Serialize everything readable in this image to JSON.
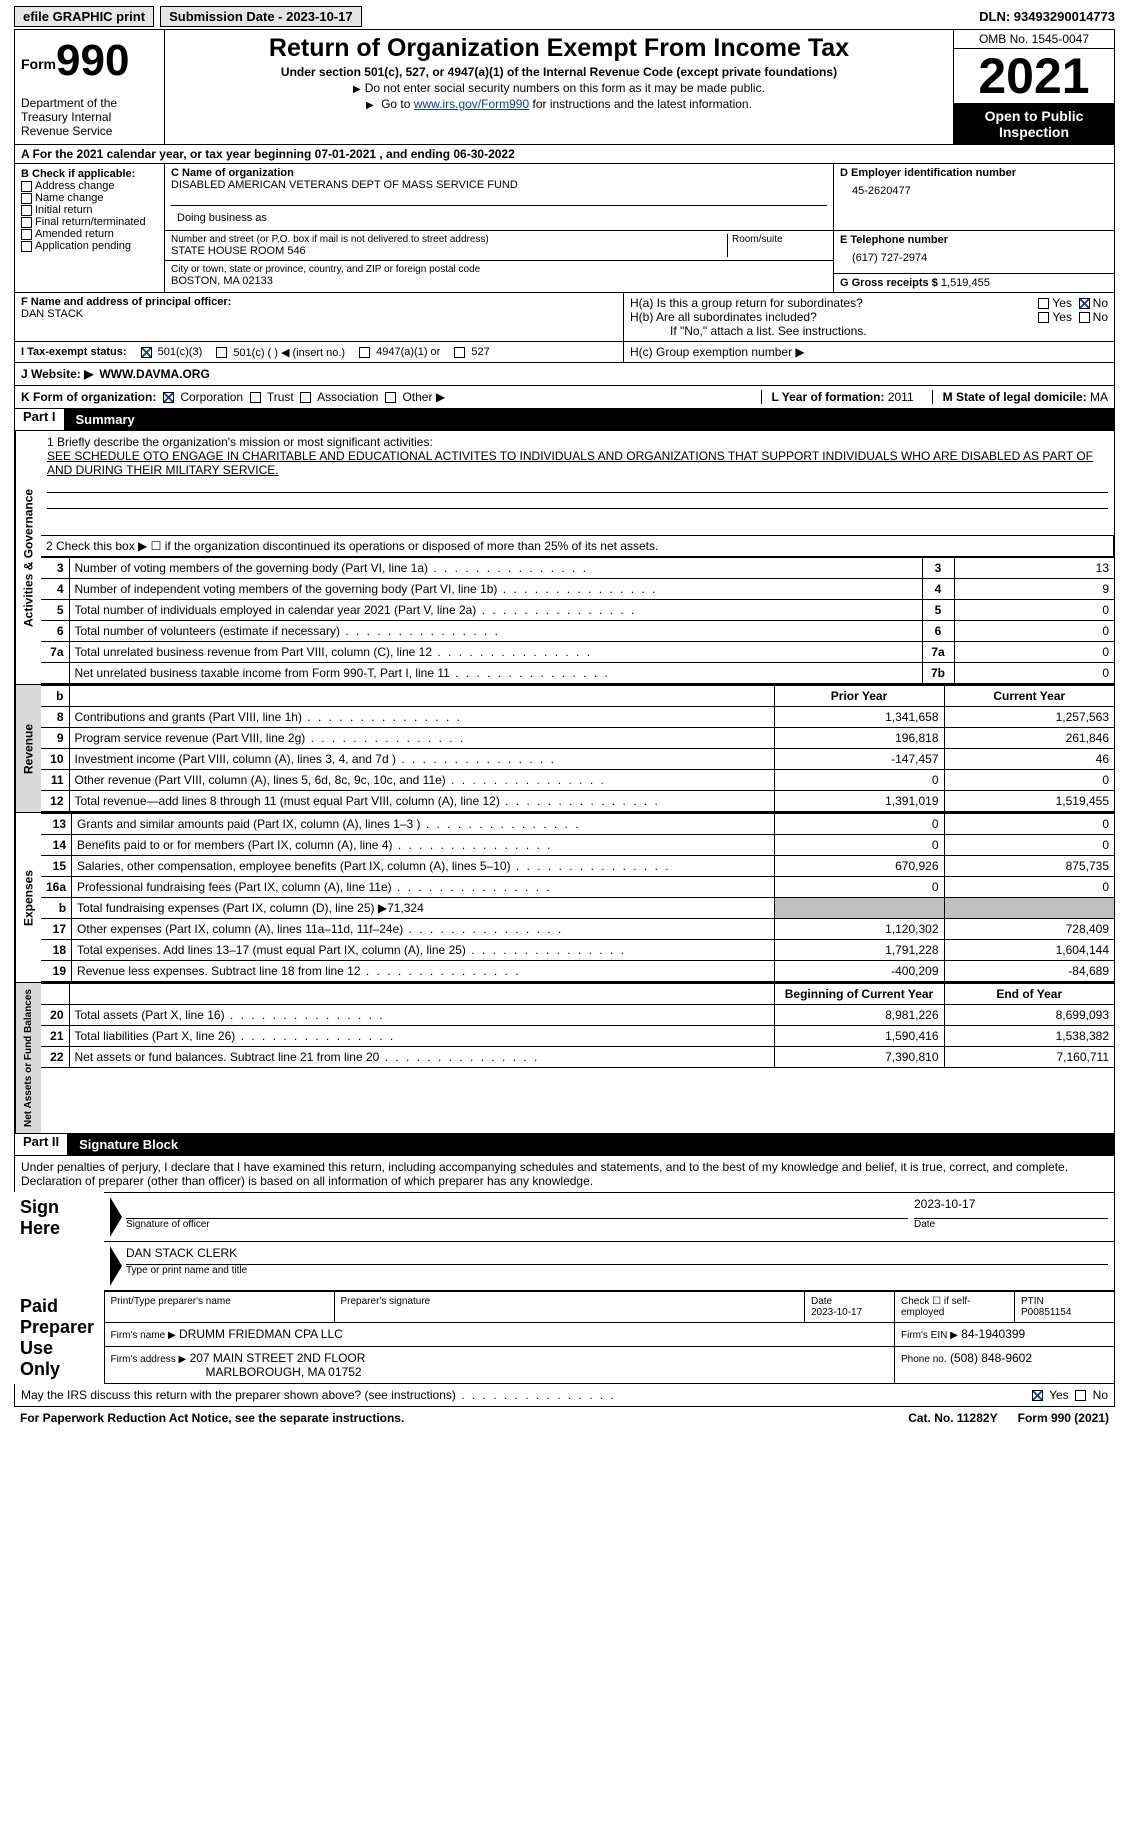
{
  "topbar": {
    "efile": "efile GRAPHIC print",
    "submission": "Submission Date - 2023-10-17",
    "dln": "DLN: 93493290014773"
  },
  "header": {
    "form": "Form",
    "num": "990",
    "dept": "Department of the Treasury Internal Revenue Service",
    "title": "Return of Organization Exempt From Income Tax",
    "sub": "Under section 501(c), 527, or 4947(a)(1) of the Internal Revenue Code (except private foundations)",
    "note1": "Do not enter social security numbers on this form as it may be made public.",
    "note2_pre": "Go to ",
    "note2_link": "www.irs.gov/Form990",
    "note2_post": " for instructions and the latest information.",
    "omb": "OMB No. 1545-0047",
    "year": "2021",
    "inspect": "Open to Public Inspection"
  },
  "lineA": "A For the 2021 calendar year, or tax year beginning 07-01-2021   , and ending 06-30-2022",
  "boxB": {
    "label": "B Check if applicable:",
    "opts": [
      "Address change",
      "Name change",
      "Initial return",
      "Final return/terminated",
      "Amended return",
      "Application pending"
    ]
  },
  "boxC": {
    "label_name": "C Name of organization",
    "name": "DISABLED AMERICAN VETERANS DEPT OF MASS SERVICE FUND",
    "dba_label": "Doing business as",
    "addr_label": "Number and street (or P.O. box if mail is not delivered to street address)",
    "room_label": "Room/suite",
    "addr": "STATE HOUSE ROOM 546",
    "city_label": "City or town, state or province, country, and ZIP or foreign postal code",
    "city": "BOSTON, MA  02133"
  },
  "boxD": {
    "label": "D Employer identification number",
    "val": "45-2620477"
  },
  "boxE": {
    "label": "E Telephone number",
    "val": "(617) 727-2974"
  },
  "boxG": {
    "label": "G Gross receipts $",
    "val": "1,519,455"
  },
  "boxF": {
    "label": "F  Name and address of principal officer:",
    "name": "DAN STACK"
  },
  "boxH": {
    "a": "H(a)  Is this a group return for subordinates?",
    "b": "H(b)  Are all subordinates included?",
    "bnote": "If \"No,\" attach a list. See instructions.",
    "c": "H(c)  Group exemption number ▶"
  },
  "boxI": {
    "label": "I   Tax-exempt status:",
    "c3": "501(c)(3)",
    "c": "501(c) (  ) ◀ (insert no.)",
    "a1": "4947(a)(1) or",
    "527": "527"
  },
  "boxJ": {
    "label": "J   Website: ▶",
    "val": "WWW.DAVMA.ORG"
  },
  "boxK": {
    "label": "K Form of organization:",
    "corp": "Corporation",
    "trust": "Trust",
    "assoc": "Association",
    "other": "Other ▶"
  },
  "boxL": {
    "label": "L Year of formation:",
    "val": "2011"
  },
  "boxM": {
    "label": "M State of legal domicile:",
    "val": "MA"
  },
  "part1": {
    "partno": "Part I",
    "title": "Summary",
    "line1_lbl": "1   Briefly describe the organization's mission or most significant activities:",
    "line1_txt": "SEE SCHEDULE OTO ENGAGE IN CHARITABLE AND EDUCATIONAL ACTIVITES TO INDIVIDUALS AND ORGANIZATIONS THAT SUPPORT INDIVIDUALS WHO ARE DISABLED AS PART OF AND DURING THEIR MILITARY SERVICE.",
    "side_a": "Activities & Governance",
    "side_r": "Revenue",
    "side_e": "Expenses",
    "side_n": "Net Assets or Fund Balances",
    "line2": "2    Check this box ▶ ☐  if the organization discontinued its operations or disposed of more than 25% of its net assets.",
    "rows_gov": [
      {
        "n": "3",
        "t": "Number of voting members of the governing body (Part VI, line 1a)",
        "k": "3",
        "v": "13"
      },
      {
        "n": "4",
        "t": "Number of independent voting members of the governing body (Part VI, line 1b)",
        "k": "4",
        "v": "9"
      },
      {
        "n": "5",
        "t": "Total number of individuals employed in calendar year 2021 (Part V, line 2a)",
        "k": "5",
        "v": "0"
      },
      {
        "n": "6",
        "t": "Total number of volunteers (estimate if necessary)",
        "k": "6",
        "v": "0"
      },
      {
        "n": "7a",
        "t": "Total unrelated business revenue from Part VIII, column (C), line 12",
        "k": "7a",
        "v": "0"
      },
      {
        "n": "",
        "t": "Net unrelated business taxable income from Form 990-T, Part I, line 11",
        "k": "7b",
        "v": "0"
      }
    ],
    "rev_hdr": {
      "py": "Prior Year",
      "cy": "Current Year"
    },
    "rows_rev": [
      {
        "n": "8",
        "t": "Contributions and grants (Part VIII, line 1h)",
        "py": "1,341,658",
        "cy": "1,257,563"
      },
      {
        "n": "9",
        "t": "Program service revenue (Part VIII, line 2g)",
        "py": "196,818",
        "cy": "261,846"
      },
      {
        "n": "10",
        "t": "Investment income (Part VIII, column (A), lines 3, 4, and 7d )",
        "py": "-147,457",
        "cy": "46"
      },
      {
        "n": "11",
        "t": "Other revenue (Part VIII, column (A), lines 5, 6d, 8c, 9c, 10c, and 11e)",
        "py": "0",
        "cy": "0"
      },
      {
        "n": "12",
        "t": "Total revenue—add lines 8 through 11 (must equal Part VIII, column (A), line 12)",
        "py": "1,391,019",
        "cy": "1,519,455"
      }
    ],
    "rows_exp": [
      {
        "n": "13",
        "t": "Grants and similar amounts paid (Part IX, column (A), lines 1–3 )",
        "py": "0",
        "cy": "0"
      },
      {
        "n": "14",
        "t": "Benefits paid to or for members (Part IX, column (A), line 4)",
        "py": "0",
        "cy": "0"
      },
      {
        "n": "15",
        "t": "Salaries, other compensation, employee benefits (Part IX, column (A), lines 5–10)",
        "py": "670,926",
        "cy": "875,735"
      },
      {
        "n": "16a",
        "t": "Professional fundraising fees (Part IX, column (A), line 11e)",
        "py": "0",
        "cy": "0"
      },
      {
        "n": "b",
        "t": "Total fundraising expenses (Part IX, column (D), line 25) ▶71,324",
        "shade": true
      },
      {
        "n": "17",
        "t": "Other expenses (Part IX, column (A), lines 11a–11d, 11f–24e)",
        "py": "1,120,302",
        "cy": "728,409"
      },
      {
        "n": "18",
        "t": "Total expenses. Add lines 13–17 (must equal Part IX, column (A), line 25)",
        "py": "1,791,228",
        "cy": "1,604,144"
      },
      {
        "n": "19",
        "t": "Revenue less expenses. Subtract line 18 from line 12",
        "py": "-400,209",
        "cy": "-84,689"
      }
    ],
    "net_hdr": {
      "b": "Beginning of Current Year",
      "e": "End of Year"
    },
    "rows_net": [
      {
        "n": "20",
        "t": "Total assets (Part X, line 16)",
        "py": "8,981,226",
        "cy": "8,699,093"
      },
      {
        "n": "21",
        "t": "Total liabilities (Part X, line 26)",
        "py": "1,590,416",
        "cy": "1,538,382"
      },
      {
        "n": "22",
        "t": "Net assets or fund balances. Subtract line 21 from line 20",
        "py": "7,390,810",
        "cy": "7,160,711"
      }
    ]
  },
  "part2": {
    "partno": "Part II",
    "title": "Signature Block",
    "decl": "Under penalties of perjury, I declare that I have examined this return, including accompanying schedules and statements, and to the best of my knowledge and belief, it is true, correct, and complete. Declaration of preparer (other than officer) is based on all information of which preparer has any knowledge.",
    "sign_here": "Sign Here",
    "sigoff": "Signature of officer",
    "sigdate": "2023-10-17",
    "date": "Date",
    "typed": "DAN STACK CLERK",
    "typed_lbl": "Type or print name and title",
    "paid": "Paid Preparer Use Only",
    "pname_lbl": "Print/Type preparer's name",
    "psig_lbl": "Preparer's signature",
    "pdate_lbl": "Date",
    "pdate": "2023-10-17",
    "selfemp": "Check ☐ if self-employed",
    "ptin_lbl": "PTIN",
    "ptin": "P00851154",
    "firm_lbl": "Firm's name   ▶",
    "firm": "DRUMM FRIEDMAN CPA LLC",
    "ein_lbl": "Firm's EIN ▶",
    "ein": "84-1940399",
    "addr_lbl": "Firm's address ▶",
    "addr1": "207 MAIN STREET 2ND FLOOR",
    "addr2": "MARLBOROUGH, MA  01752",
    "phone_lbl": "Phone no.",
    "phone": "(508) 848-9602",
    "discuss": "May the IRS discuss this return with the preparer shown above? (see instructions)"
  },
  "footer": {
    "notice": "For Paperwork Reduction Act Notice, see the separate instructions.",
    "cat": "Cat. No. 11282Y",
    "form": "Form 990 (2021)"
  },
  "yes": "Yes",
  "no": "No"
}
